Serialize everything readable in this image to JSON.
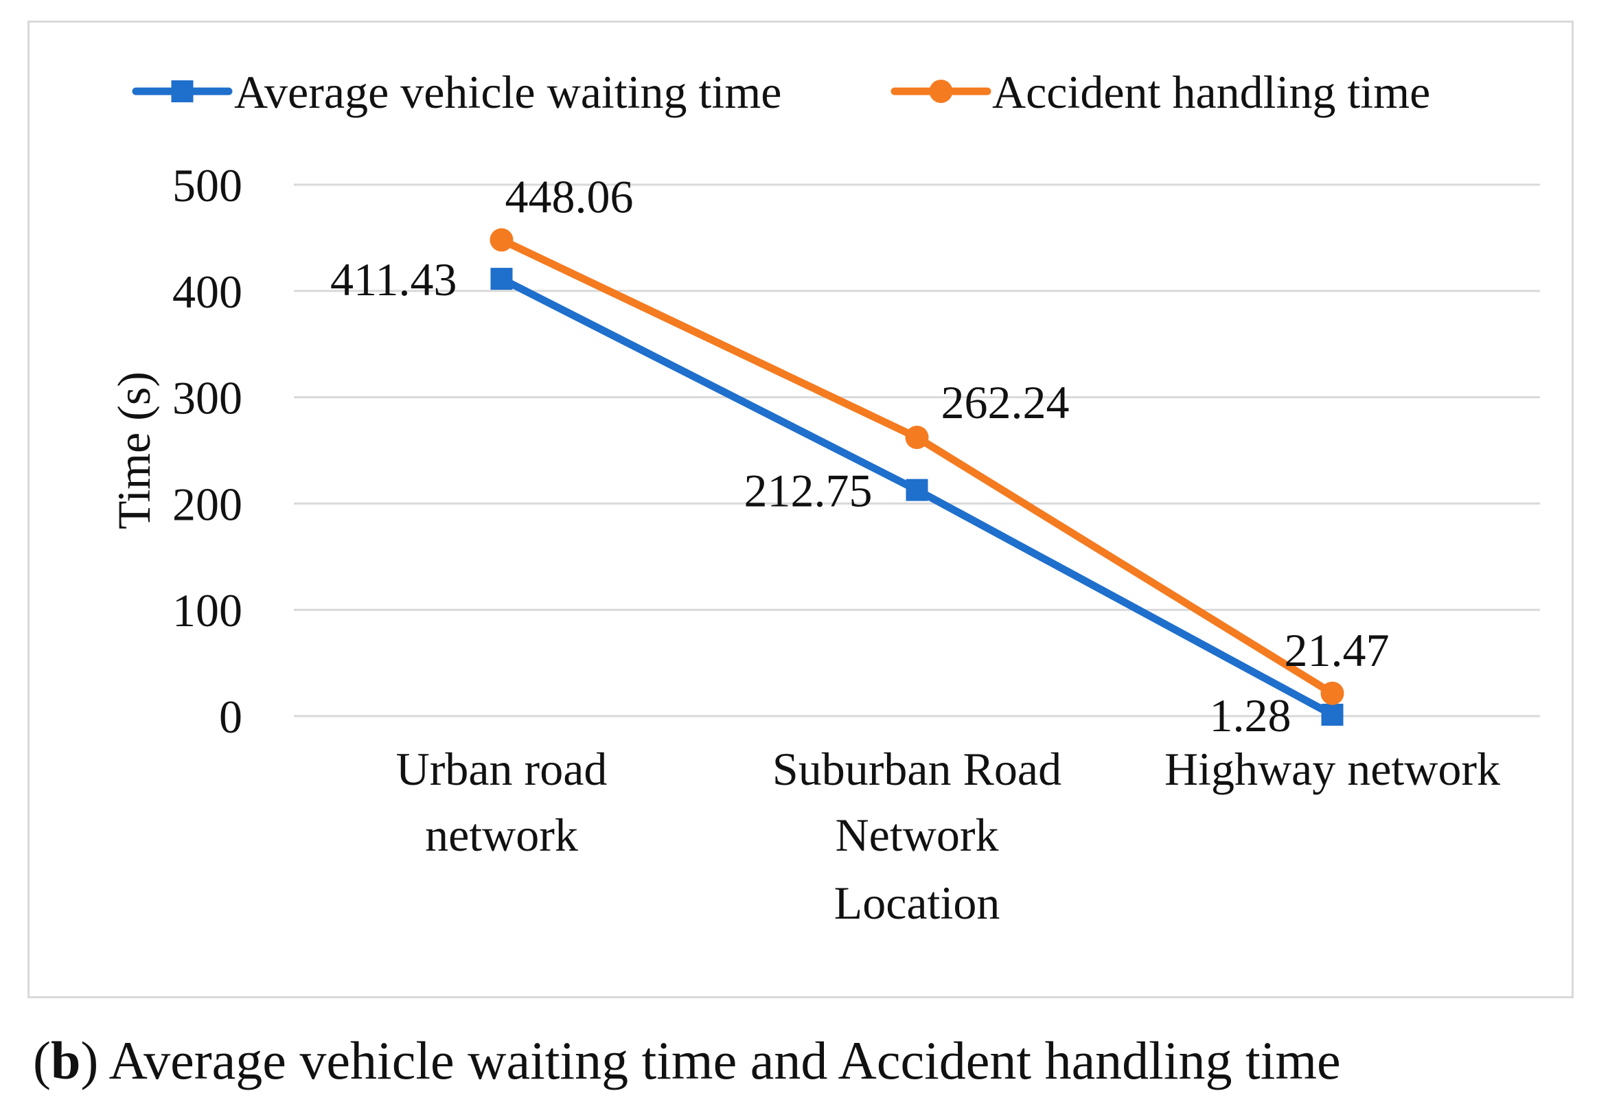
{
  "chart_data": {
    "type": "line",
    "categories": [
      [
        "Urban road",
        "network"
      ],
      [
        "Suburban Road",
        "Network"
      ],
      [
        "Highway network"
      ]
    ],
    "series": [
      {
        "name": "Average vehicle waiting time",
        "color": "#1f6fcc",
        "marker": "square",
        "values": [
          411.43,
          212.75,
          1.28
        ],
        "labels": [
          "411.43",
          "212.75",
          "1.28"
        ]
      },
      {
        "name": "Accident handling time",
        "color": "#f47b20",
        "marker": "circle",
        "values": [
          448.06,
          262.24,
          21.47
        ],
        "labels": [
          "448.06",
          "262.24",
          "21.47"
        ]
      }
    ],
    "ylim": [
      0,
      500
    ],
    "yticks": [
      "0",
      "100",
      "200",
      "300",
      "400",
      "500"
    ],
    "ylabel": "Time (s)",
    "xlabel": "Location",
    "grid": true,
    "legend": "top"
  },
  "caption": {
    "letter": "b",
    "text": "Average vehicle waiting time and Accident handling time"
  }
}
